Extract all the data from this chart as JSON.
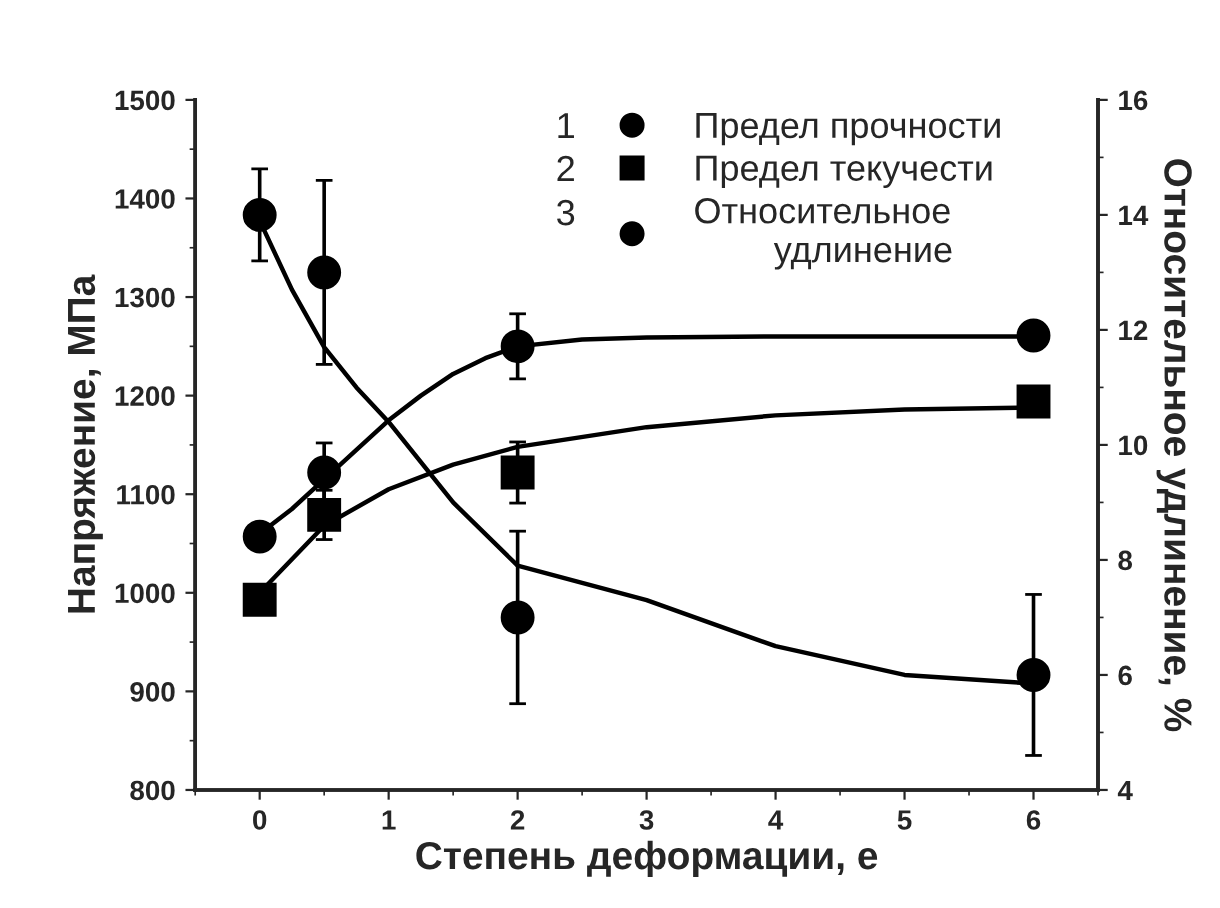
{
  "chart_data": {
    "type": "scatter",
    "xlabel": "Степень деформации, е",
    "ylabel": "Напряжение, МПа",
    "y2label": "Относительное удлинение, %",
    "x": [
      0,
      0.5,
      2,
      6
    ],
    "xlim": [
      -0.5,
      6.5
    ],
    "xticks": [
      0,
      1,
      2,
      3,
      4,
      5,
      6
    ],
    "ylim": [
      800,
      1500
    ],
    "yticks": [
      800,
      900,
      1000,
      1100,
      1200,
      1300,
      1400,
      1500
    ],
    "y2lim": [
      4,
      16
    ],
    "y2ticks": [
      4,
      6,
      8,
      10,
      12,
      14,
      16
    ],
    "grid": false,
    "legend": "top right",
    "annotations": [
      "1",
      "2",
      "3"
    ],
    "series": [
      {
        "name": "Предел прочности",
        "marker": "circle",
        "color": "#000000",
        "values": [
          1057,
          1122,
          1250,
          1261
        ],
        "errors": [
          null,
          30,
          33,
          null
        ]
      },
      {
        "name": "Предел текучести",
        "marker": "square",
        "color": "#000000",
        "values": [
          993,
          1079,
          1122,
          1194
        ],
        "errors": [
          null,
          25,
          31,
          15
        ]
      },
      {
        "name": "Относительное\n        удлинение",
        "marker": "circle",
        "axis": "y2",
        "color": "#000000",
        "values": [
          14.0,
          13.0,
          7.0,
          6.0
        ],
        "errors": [
          0.8,
          1.6,
          1.5,
          1.4
        ]
      },
      {
        "type": "line",
        "color": "#000000",
        "marker": "none",
        "x": [
          0,
          0.25,
          0.5,
          0.75,
          1,
          1.25,
          1.5,
          1.75,
          2,
          2.5,
          3,
          4,
          5,
          6
        ],
        "values": [
          1060,
          1085,
          1115,
          1145,
          1175,
          1200,
          1222,
          1238,
          1250,
          1257,
          1259,
          1260,
          1260,
          1260
        ]
      },
      {
        "type": "line",
        "color": "#000000",
        "marker": "none",
        "x": [
          0,
          0.5,
          1,
          1.5,
          2,
          3,
          4,
          5,
          6
        ],
        "values": [
          1000,
          1068,
          1105,
          1130,
          1148,
          1168,
          1180,
          1186,
          1188
        ]
      },
      {
        "type": "line",
        "color": "#000000",
        "marker": "none",
        "axis": "y2",
        "x": [
          0,
          0.25,
          0.5,
          0.75,
          1,
          1.5,
          2,
          2.5,
          3,
          4,
          5,
          6
        ],
        "values": [
          13.9,
          12.7,
          11.7,
          11.0,
          10.4,
          9.0,
          7.9,
          7.6,
          7.3,
          6.5,
          6.0,
          5.85
        ]
      }
    ]
  }
}
